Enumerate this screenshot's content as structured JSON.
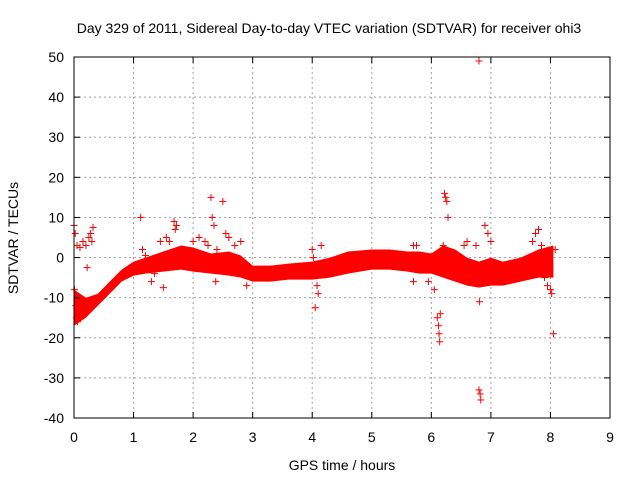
{
  "chart_data": {
    "type": "scatter",
    "title": "Day 329 of 2011, Sidereal Day-to-day VTEC variation (SDTVAR) for receiver ohi3",
    "xlabel": "GPS time / hours",
    "ylabel": "SDTVAR / TECUs",
    "xlim": [
      0,
      9
    ],
    "ylim": [
      -40,
      50
    ],
    "xticks": [
      0,
      1,
      2,
      3,
      4,
      5,
      6,
      7,
      8,
      9
    ],
    "yticks": [
      -40,
      -30,
      -20,
      -10,
      0,
      10,
      20,
      30,
      40,
      50
    ],
    "grid": true,
    "marker": "+",
    "series_color": "#ff0000",
    "series": [
      {
        "name": "SDTVAR",
        "band": {
          "x": [
            0,
            0.2,
            0.4,
            0.6,
            0.8,
            1.0,
            1.2,
            1.5,
            1.8,
            2.0,
            2.3,
            2.6,
            2.8,
            3.0,
            3.3,
            3.6,
            4.0,
            4.3,
            4.6,
            5.0,
            5.3,
            5.6,
            5.8,
            6.0,
            6.2,
            6.4,
            6.6,
            6.8,
            7.0,
            7.2,
            7.5,
            7.8,
            8.05
          ],
          "upper": [
            -8,
            -10,
            -9,
            -6,
            -3,
            -1,
            0,
            1.5,
            3,
            2.5,
            1,
            1.5,
            0.5,
            -2,
            -2,
            -1.5,
            -1,
            0,
            1.5,
            2,
            2,
            1.5,
            1.5,
            1,
            3,
            2,
            0,
            -1,
            0,
            -1,
            0,
            2,
            3
          ],
          "lower": [
            -17,
            -15,
            -12,
            -9,
            -6,
            -4.5,
            -4,
            -3.5,
            -3,
            -3.5,
            -4,
            -4.5,
            -5,
            -6,
            -6,
            -5.5,
            -5.5,
            -5,
            -4,
            -3,
            -3,
            -3.5,
            -4,
            -4,
            -5,
            -6,
            -7,
            -7.5,
            -7,
            -7,
            -6,
            -5,
            -5
          ]
        },
        "points": [
          [
            0.0,
            8
          ],
          [
            0.02,
            6
          ],
          [
            0.05,
            3
          ],
          [
            0.1,
            2.5
          ],
          [
            0.15,
            4
          ],
          [
            0.2,
            3
          ],
          [
            0.25,
            5
          ],
          [
            0.28,
            6
          ],
          [
            0.32,
            7.5
          ],
          [
            0.3,
            4
          ],
          [
            0.22,
            -2.5
          ],
          [
            0.01,
            -8
          ],
          [
            0.03,
            -12
          ],
          [
            0.04,
            -15
          ],
          [
            0.06,
            -16
          ],
          [
            1.12,
            10
          ],
          [
            1.15,
            2
          ],
          [
            1.2,
            0.5
          ],
          [
            1.25,
            -3
          ],
          [
            1.3,
            -6
          ],
          [
            1.35,
            -4
          ],
          [
            1.5,
            -7.5
          ],
          [
            1.45,
            4
          ],
          [
            1.55,
            5
          ],
          [
            1.6,
            4
          ],
          [
            1.68,
            9
          ],
          [
            1.7,
            7
          ],
          [
            1.72,
            8
          ],
          [
            2.0,
            4
          ],
          [
            2.1,
            5
          ],
          [
            2.2,
            4
          ],
          [
            2.25,
            3
          ],
          [
            2.3,
            15
          ],
          [
            2.32,
            10
          ],
          [
            2.35,
            8
          ],
          [
            2.38,
            -6
          ],
          [
            2.4,
            2
          ],
          [
            2.5,
            14
          ],
          [
            2.55,
            6
          ],
          [
            2.6,
            5
          ],
          [
            2.7,
            3
          ],
          [
            2.8,
            4
          ],
          [
            2.9,
            -7
          ],
          [
            4.0,
            2
          ],
          [
            4.02,
            0
          ],
          [
            4.05,
            -12.5
          ],
          [
            4.08,
            -7
          ],
          [
            4.1,
            -9
          ],
          [
            4.15,
            3
          ],
          [
            5.7,
            3
          ],
          [
            5.75,
            3
          ],
          [
            5.7,
            -6
          ],
          [
            5.95,
            -6
          ],
          [
            6.05,
            -8
          ],
          [
            6.1,
            -15
          ],
          [
            6.12,
            -17
          ],
          [
            6.13,
            -19
          ],
          [
            6.14,
            -21
          ],
          [
            6.15,
            -14
          ],
          [
            6.2,
            3
          ],
          [
            6.22,
            16
          ],
          [
            6.24,
            15
          ],
          [
            6.26,
            14
          ],
          [
            6.28,
            10
          ],
          [
            6.55,
            3
          ],
          [
            6.6,
            4
          ],
          [
            6.75,
            3
          ],
          [
            6.8,
            49
          ],
          [
            6.81,
            -11
          ],
          [
            6.8,
            -33
          ],
          [
            6.82,
            -34
          ],
          [
            6.83,
            -35.5
          ],
          [
            6.9,
            8
          ],
          [
            6.95,
            6
          ],
          [
            7.0,
            4
          ],
          [
            7.7,
            4
          ],
          [
            7.75,
            6
          ],
          [
            7.8,
            7
          ],
          [
            7.85,
            3
          ],
          [
            7.9,
            -5
          ],
          [
            7.95,
            -7
          ],
          [
            8.0,
            -8
          ],
          [
            8.02,
            -9
          ],
          [
            8.05,
            -19
          ],
          [
            8.08,
            2
          ]
        ]
      }
    ]
  }
}
